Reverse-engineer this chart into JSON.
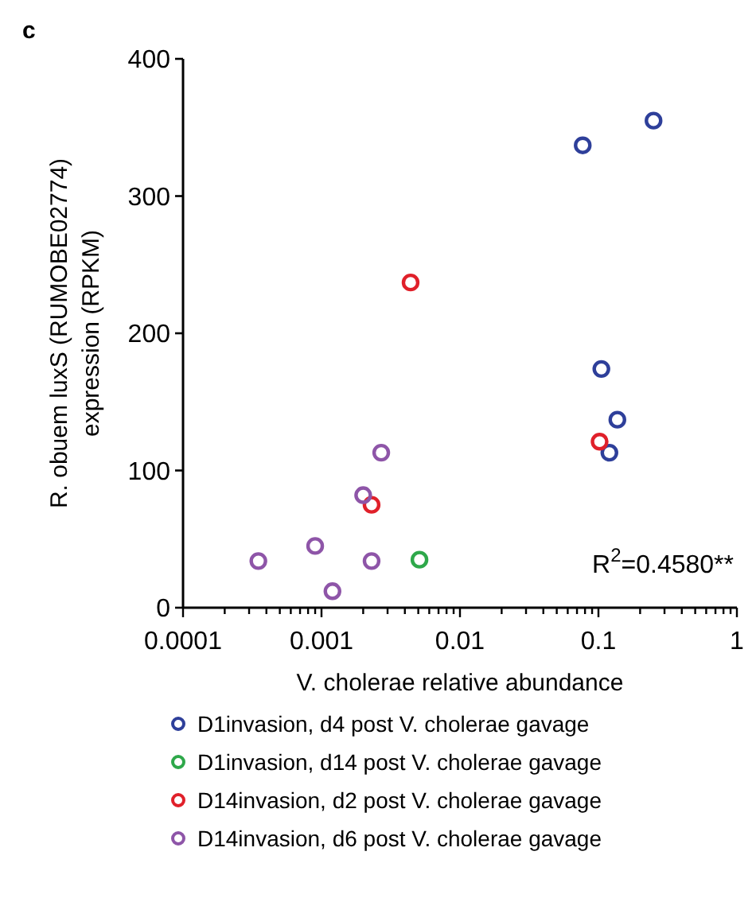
{
  "chart_data": {
    "type": "scatter",
    "log": "x",
    "marker": "circle",
    "legend": "bottom",
    "grid": false,
    "xlabel": "V. cholerae relative abundance",
    "ylabel": "R. obuem luxS (RUMOBE02774) expression (RPKM)",
    "annotations": [
      "c",
      "R$^{2}$=0.4580**"
    ],
    "xlim": [
      0.0001,
      1
    ],
    "ylim": [
      0,
      400
    ],
    "yticks": [
      0,
      100,
      200,
      300,
      400
    ],
    "xticks": [
      {
        "value": 0.0001,
        "label": "0.0001"
      },
      {
        "value": 0.0002,
        "label": null
      },
      {
        "value": 0.0003,
        "label": null
      },
      {
        "value": 0.0004,
        "label": null
      },
      {
        "value": 0.0005,
        "label": null
      },
      {
        "value": 0.0006,
        "label": null
      },
      {
        "value": 0.0007,
        "label": null
      },
      {
        "value": 0.0008,
        "label": null
      },
      {
        "value": 0.0009,
        "label": null
      },
      {
        "value": 0.001,
        "label": "0.001"
      },
      {
        "value": 0.002,
        "label": null
      },
      {
        "value": 0.003,
        "label": null
      },
      {
        "value": 0.004,
        "label": null
      },
      {
        "value": 0.005,
        "label": null
      },
      {
        "value": 0.006,
        "label": null
      },
      {
        "value": 0.007,
        "label": null
      },
      {
        "value": 0.008,
        "label": null
      },
      {
        "value": 0.009,
        "label": null
      },
      {
        "value": 0.01,
        "label": "0.01"
      },
      {
        "value": 0.02,
        "label": null
      },
      {
        "value": 0.03,
        "label": null
      },
      {
        "value": 0.04,
        "label": null
      },
      {
        "value": 0.05,
        "label": null
      },
      {
        "value": 0.06,
        "label": null
      },
      {
        "value": 0.07,
        "label": null
      },
      {
        "value": 0.08,
        "label": null
      },
      {
        "value": 0.09,
        "label": null
      },
      {
        "value": 0.1,
        "label": "0.1"
      },
      {
        "value": 0.2,
        "label": null
      },
      {
        "value": 0.3,
        "label": null
      },
      {
        "value": 0.4,
        "label": null
      },
      {
        "value": 0.5,
        "label": null
      },
      {
        "value": 0.6,
        "label": null
      },
      {
        "value": 0.7,
        "label": null
      },
      {
        "value": 0.8,
        "label": null
      },
      {
        "value": 0.9,
        "label": null
      },
      {
        "value": 1,
        "label": "1"
      }
    ],
    "series": [
      {
        "name": "D1invasion, d4 post V. cholerae gavage",
        "color": "#2e3f9a",
        "x": [
          0.077,
          0.25,
          0.105,
          0.137,
          0.12
        ],
        "values": [
          337,
          355,
          174,
          137,
          113
        ]
      },
      {
        "name": "D1invasion, d14 post V. cholerae gavage",
        "color": "#2ea84a",
        "x": [
          0.0051
        ],
        "values": [
          35
        ]
      },
      {
        "name": "D14invasion, d2 post V. cholerae gavage",
        "color": "#e0202a",
        "x": [
          0.0044,
          0.102,
          0.0023
        ],
        "values": [
          237,
          121,
          75
        ]
      },
      {
        "name": "D14invasion, d6 post V. cholerae gavage",
        "color": "#8e55a8",
        "x": [
          0.0027,
          0.002,
          0.0009,
          0.00035,
          0.0023,
          0.0012
        ],
        "values": [
          113,
          82,
          45,
          34,
          34,
          12
        ]
      }
    ]
  }
}
